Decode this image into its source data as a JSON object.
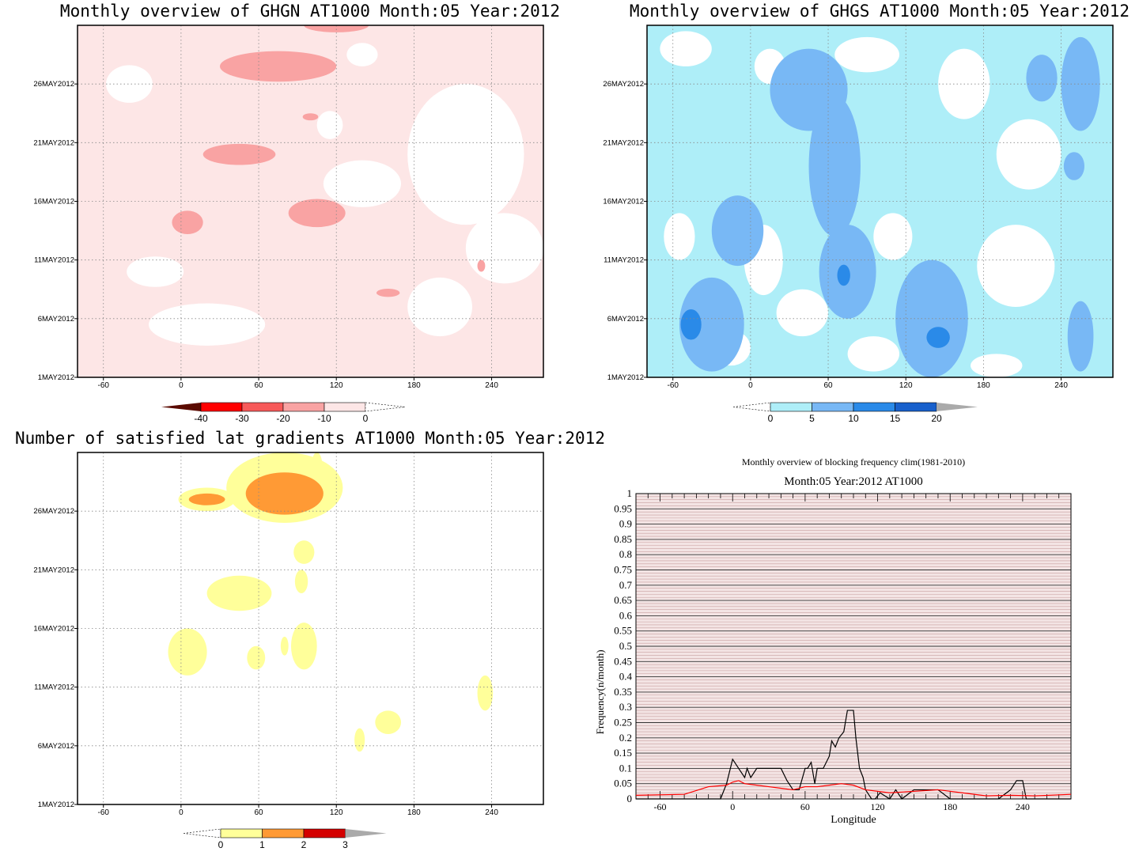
{
  "chart_data": [
    {
      "type": "heatmap",
      "title": "Monthly overview of GHGN AT1000 Month:05 Year:2012",
      "x_ticks": [
        -60,
        0,
        60,
        120,
        180,
        240
      ],
      "y_ticks": [
        "1MAY2012",
        "6MAY2012",
        "11MAY2012",
        "16MAY2012",
        "21MAY2012",
        "26MAY2012"
      ],
      "xlim": [
        -80,
        280
      ],
      "ylim": [
        1,
        31
      ],
      "grid": true,
      "colorbar": {
        "ticks": [
          "-40",
          "-30",
          "-20",
          "-10",
          "0"
        ],
        "colors": [
          "#5a0a00",
          "#ff0000",
          "#f75a5a",
          "#f9a3a3",
          "#fde6e6"
        ]
      },
      "contours": [
        {
          "level": -20,
          "color": "#f9a3a3",
          "shapes": [
            {
              "lon": 75,
              "day": 27.5,
              "rlon": 45,
              "rday": 1.3
            },
            {
              "lon": 120,
              "day": 31,
              "rlon": 25,
              "rday": 0.6
            },
            {
              "lon": 45,
              "day": 20,
              "rlon": 28,
              "rday": 0.9
            },
            {
              "lon": 105,
              "day": 15,
              "rlon": 22,
              "rday": 1.2
            },
            {
              "lon": 5,
              "day": 14.2,
              "rlon": 12,
              "rday": 1.0
            },
            {
              "lon": 100,
              "day": 23.2,
              "rlon": 6,
              "rday": 0.3
            },
            {
              "lon": 160,
              "day": 8.2,
              "rlon": 9,
              "rday": 0.35
            },
            {
              "lon": 232,
              "day": 10.5,
              "rlon": 3,
              "rday": 0.5
            }
          ]
        },
        {
          "level": -10,
          "color": "#fde6e6",
          "shapes": []
        }
      ]
    },
    {
      "type": "heatmap",
      "title": "Monthly overview of GHGS AT1000 Month:05 Year:2012",
      "x_ticks": [
        -60,
        0,
        60,
        120,
        180,
        240
      ],
      "y_ticks": [
        "1MAY2012",
        "6MAY2012",
        "11MAY2012",
        "16MAY2012",
        "21MAY2012",
        "26MAY2012"
      ],
      "xlim": [
        -80,
        280
      ],
      "ylim": [
        1,
        31
      ],
      "grid": true,
      "colorbar": {
        "ticks": [
          "0",
          "5",
          "10",
          "15",
          "20"
        ],
        "colors": [
          "#aeeef8",
          "#78b8f5",
          "#2a8ae8",
          "#1860cc",
          "#aaaaaa"
        ]
      },
      "contours": [
        {
          "level": 5,
          "color": "#78b8f5",
          "shapes": [
            {
              "lon": 45,
              "day": 25.5,
              "rlon": 30,
              "rday": 3.5
            },
            {
              "lon": 65,
              "day": 19,
              "rlon": 20,
              "rday": 6
            },
            {
              "lon": -30,
              "day": 5.5,
              "rlon": 25,
              "rday": 4
            },
            {
              "lon": 75,
              "day": 10,
              "rlon": 22,
              "rday": 4
            },
            {
              "lon": 140,
              "day": 6,
              "rlon": 28,
              "rday": 5
            },
            {
              "lon": 255,
              "day": 26,
              "rlon": 15,
              "rday": 4
            },
            {
              "lon": 255,
              "day": 4.5,
              "rlon": 10,
              "rday": 3
            },
            {
              "lon": 225,
              "day": 26.5,
              "rlon": 12,
              "rday": 2
            },
            {
              "lon": -10,
              "day": 13.5,
              "rlon": 20,
              "rday": 3
            },
            {
              "lon": 250,
              "day": 19,
              "rlon": 8,
              "rday": 1.2
            }
          ]
        },
        {
          "level": 10,
          "color": "#2a8ae8",
          "shapes": [
            {
              "lon": -46,
              "day": 5.5,
              "rlon": 8,
              "rday": 1.3
            },
            {
              "lon": 145,
              "day": 4.4,
              "rlon": 9,
              "rday": 0.9
            },
            {
              "lon": 72,
              "day": 9.7,
              "rlon": 5,
              "rday": 0.9
            }
          ]
        }
      ]
    },
    {
      "type": "heatmap",
      "title": "Number of satisfied lat gradients AT1000 Month:05 Year:2012",
      "x_ticks": [
        -60,
        0,
        60,
        120,
        180,
        240
      ],
      "y_ticks": [
        "1MAY2012",
        "6MAY2012",
        "11MAY2012",
        "16MAY2012",
        "21MAY2012",
        "26MAY2012"
      ],
      "xlim": [
        -80,
        280
      ],
      "ylim": [
        1,
        31
      ],
      "grid": true,
      "colorbar": {
        "ticks": [
          "0",
          "1",
          "2",
          "3"
        ],
        "colors": [
          "#ffff9a",
          "#ff9a35",
          "#d40000",
          "#aaaaaa"
        ]
      },
      "contours": [
        {
          "level": 1,
          "color": "#ffff9a",
          "shapes": [
            {
              "lon": 20,
              "day": 27,
              "rlon": 22,
              "rday": 1
            },
            {
              "lon": 80,
              "day": 28,
              "rlon": 45,
              "rday": 3
            },
            {
              "lon": 105,
              "day": 30,
              "rlon": 4,
              "rday": 1
            },
            {
              "lon": 45,
              "day": 19,
              "rlon": 25,
              "rday": 1.5
            },
            {
              "lon": 95,
              "day": 22.5,
              "rlon": 8,
              "rday": 1
            },
            {
              "lon": 93,
              "day": 20,
              "rlon": 5,
              "rday": 1
            },
            {
              "lon": 5,
              "day": 14,
              "rlon": 15,
              "rday": 2
            },
            {
              "lon": 58,
              "day": 13.5,
              "rlon": 7,
              "rday": 1
            },
            {
              "lon": 95,
              "day": 14.5,
              "rlon": 10,
              "rday": 2
            },
            {
              "lon": 80,
              "day": 14.5,
              "rlon": 3,
              "rday": 0.8
            },
            {
              "lon": 235,
              "day": 10.5,
              "rlon": 6,
              "rday": 1.5
            },
            {
              "lon": 160,
              "day": 8,
              "rlon": 10,
              "rday": 1
            },
            {
              "lon": 138,
              "day": 6.5,
              "rlon": 4,
              "rday": 1
            }
          ]
        },
        {
          "level": 2,
          "color": "#ff9a35",
          "shapes": [
            {
              "lon": 20,
              "day": 27,
              "rlon": 14,
              "rday": 0.5
            },
            {
              "lon": 80,
              "day": 27.5,
              "rlon": 30,
              "rday": 1.8
            }
          ]
        }
      ]
    },
    {
      "type": "line",
      "title": "Monthly overview of blocking frequency clim(1981-2010)",
      "subtitle": "Month:05 Year:2012  AT1000",
      "xlabel": "Longitude",
      "ylabel": "Frequency(n/month)",
      "xlim": [
        -80,
        280
      ],
      "ylim": [
        0,
        1
      ],
      "x_ticks": [
        -60,
        0,
        60,
        120,
        180,
        240
      ],
      "y_ticks": [
        "0",
        "0.05",
        "0.1",
        "0.15",
        "0.2",
        "0.25",
        "0.3",
        "0.35",
        "0.4",
        "0.45",
        "0.5",
        "0.55",
        "0.6",
        "0.65",
        "0.7",
        "0.75",
        "0.8",
        "0.85",
        "0.9",
        "0.95",
        "1"
      ],
      "series": [
        {
          "color": "#000000",
          "x": [
            -80,
            -10,
            -5,
            0,
            5,
            10,
            12,
            15,
            20,
            25,
            40,
            45,
            50,
            55,
            60,
            62,
            65,
            68,
            70,
            75,
            80,
            82,
            85,
            88,
            92,
            95,
            100,
            102,
            105,
            108,
            110,
            115,
            118,
            122,
            130,
            135,
            140,
            150,
            160,
            170,
            180,
            190,
            200,
            220,
            230,
            235,
            240,
            243,
            250,
            280
          ],
          "y": [
            0,
            0,
            0.05,
            0.13,
            0.1,
            0.07,
            0.1,
            0.07,
            0.1,
            0.1,
            0.1,
            0.06,
            0.03,
            0.03,
            0.1,
            0.1,
            0.12,
            0.05,
            0.1,
            0.1,
            0.14,
            0.19,
            0.17,
            0.2,
            0.22,
            0.29,
            0.29,
            0.2,
            0.1,
            0.07,
            0.03,
            0,
            0,
            0.02,
            0,
            0.03,
            0,
            0.03,
            0.03,
            0.03,
            0,
            0,
            0,
            0,
            0.03,
            0.06,
            0.06,
            0,
            0,
            0
          ]
        },
        {
          "color": "#ff0000",
          "x": [
            -80,
            -40,
            -20,
            -5,
            0,
            5,
            10,
            20,
            30,
            40,
            50,
            60,
            70,
            80,
            90,
            100,
            110,
            120,
            130,
            150,
            170,
            190,
            210,
            230,
            250,
            280
          ],
          "y": [
            0.012,
            0.015,
            0.04,
            0.045,
            0.055,
            0.06,
            0.05,
            0.045,
            0.04,
            0.035,
            0.03,
            0.04,
            0.04,
            0.045,
            0.05,
            0.045,
            0.03,
            0.025,
            0.02,
            0.025,
            0.03,
            0.02,
            0.01,
            0.012,
            0.01,
            0.015
          ]
        }
      ]
    }
  ]
}
